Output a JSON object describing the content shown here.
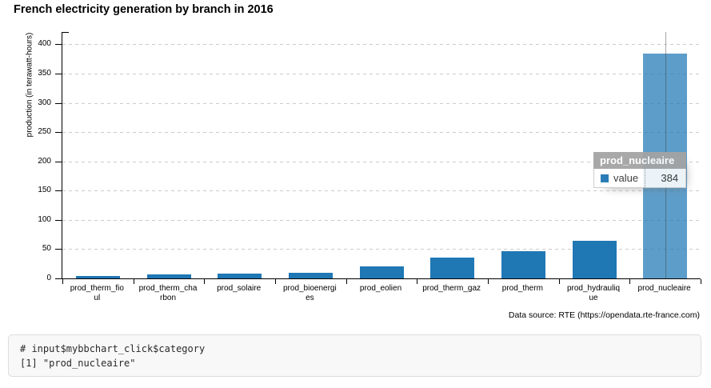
{
  "page": {
    "title": "French electricity generation by branch in 2016"
  },
  "chart_data": {
    "type": "bar",
    "title": "French electricity generation by branch in 2016",
    "categories": [
      "prod_therm_fioul",
      "prod_therm_charbon",
      "prod_solaire",
      "prod_bioenergies",
      "prod_eolien",
      "prod_therm_gaz",
      "prod_therm",
      "prod_hydraulique",
      "prod_nucleaire"
    ],
    "values": [
      4,
      7,
      8,
      9,
      21,
      35,
      46,
      64,
      384
    ],
    "series_name": "value",
    "xlabel": "",
    "ylabel": "production (in terawatt-hours)",
    "ylim": [
      0,
      421
    ],
    "y_ticks": [
      0,
      50,
      100,
      150,
      200,
      250,
      300,
      350,
      400
    ],
    "grid": "horizontal-dashed",
    "legend": "none",
    "bar_color": "#1f77b4",
    "active_bar_color": "rgba(31,119,180,0.72)",
    "active_index": 8,
    "tick_label_lines": [
      [
        "prod_therm_fio",
        "ul"
      ],
      [
        "prod_therm_cha",
        "rbon"
      ],
      [
        "prod_solaire"
      ],
      [
        "prod_bioenergi",
        "es"
      ],
      [
        "prod_eolien"
      ],
      [
        "prod_therm_gaz"
      ],
      [
        "prod_therm"
      ],
      [
        "prod_hydrauliq",
        "ue"
      ],
      [
        "prod_nucleaire"
      ]
    ]
  },
  "tooltip": {
    "title": "prod_nucleaire",
    "series_label": "value",
    "value": "384",
    "swatch_color": "#1f77b4"
  },
  "footer": {
    "data_source": "Data source: RTE (https://opendata.rte-france.com)"
  },
  "console": {
    "lines": [
      "# input$mybbchart_click$category",
      "[1] \"prod_nucleaire\""
    ]
  }
}
